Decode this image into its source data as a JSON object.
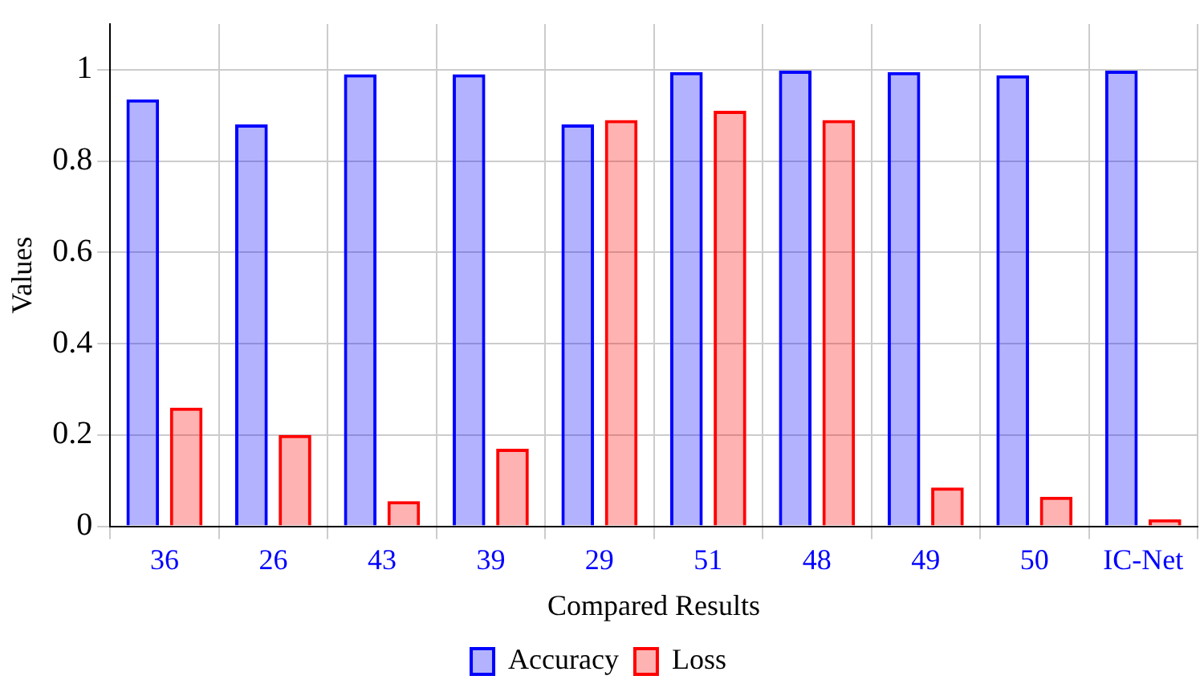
{
  "chart_data": {
    "type": "bar",
    "xlabel": "Compared Results",
    "ylabel": "Values",
    "categories": [
      "36",
      "26",
      "43",
      "39",
      "29",
      "51",
      "48",
      "49",
      "50",
      "IC-Net"
    ],
    "series": [
      {
        "name": "Accuracy",
        "color": "#0000ff",
        "values": [
          0.935,
          0.88,
          0.99,
          0.99,
          0.88,
          0.995,
          0.998,
          0.995,
          0.988,
          0.998
        ]
      },
      {
        "name": "Loss",
        "color": "#ff0000",
        "values": [
          0.26,
          0.2,
          0.055,
          0.17,
          0.89,
          0.91,
          0.89,
          0.085,
          0.065,
          0.015
        ]
      }
    ],
    "ylim": [
      0,
      1.1
    ],
    "yticks": [
      0,
      0.2,
      0.4,
      0.6,
      0.8,
      1
    ],
    "grid": true,
    "legend": "bottom"
  }
}
